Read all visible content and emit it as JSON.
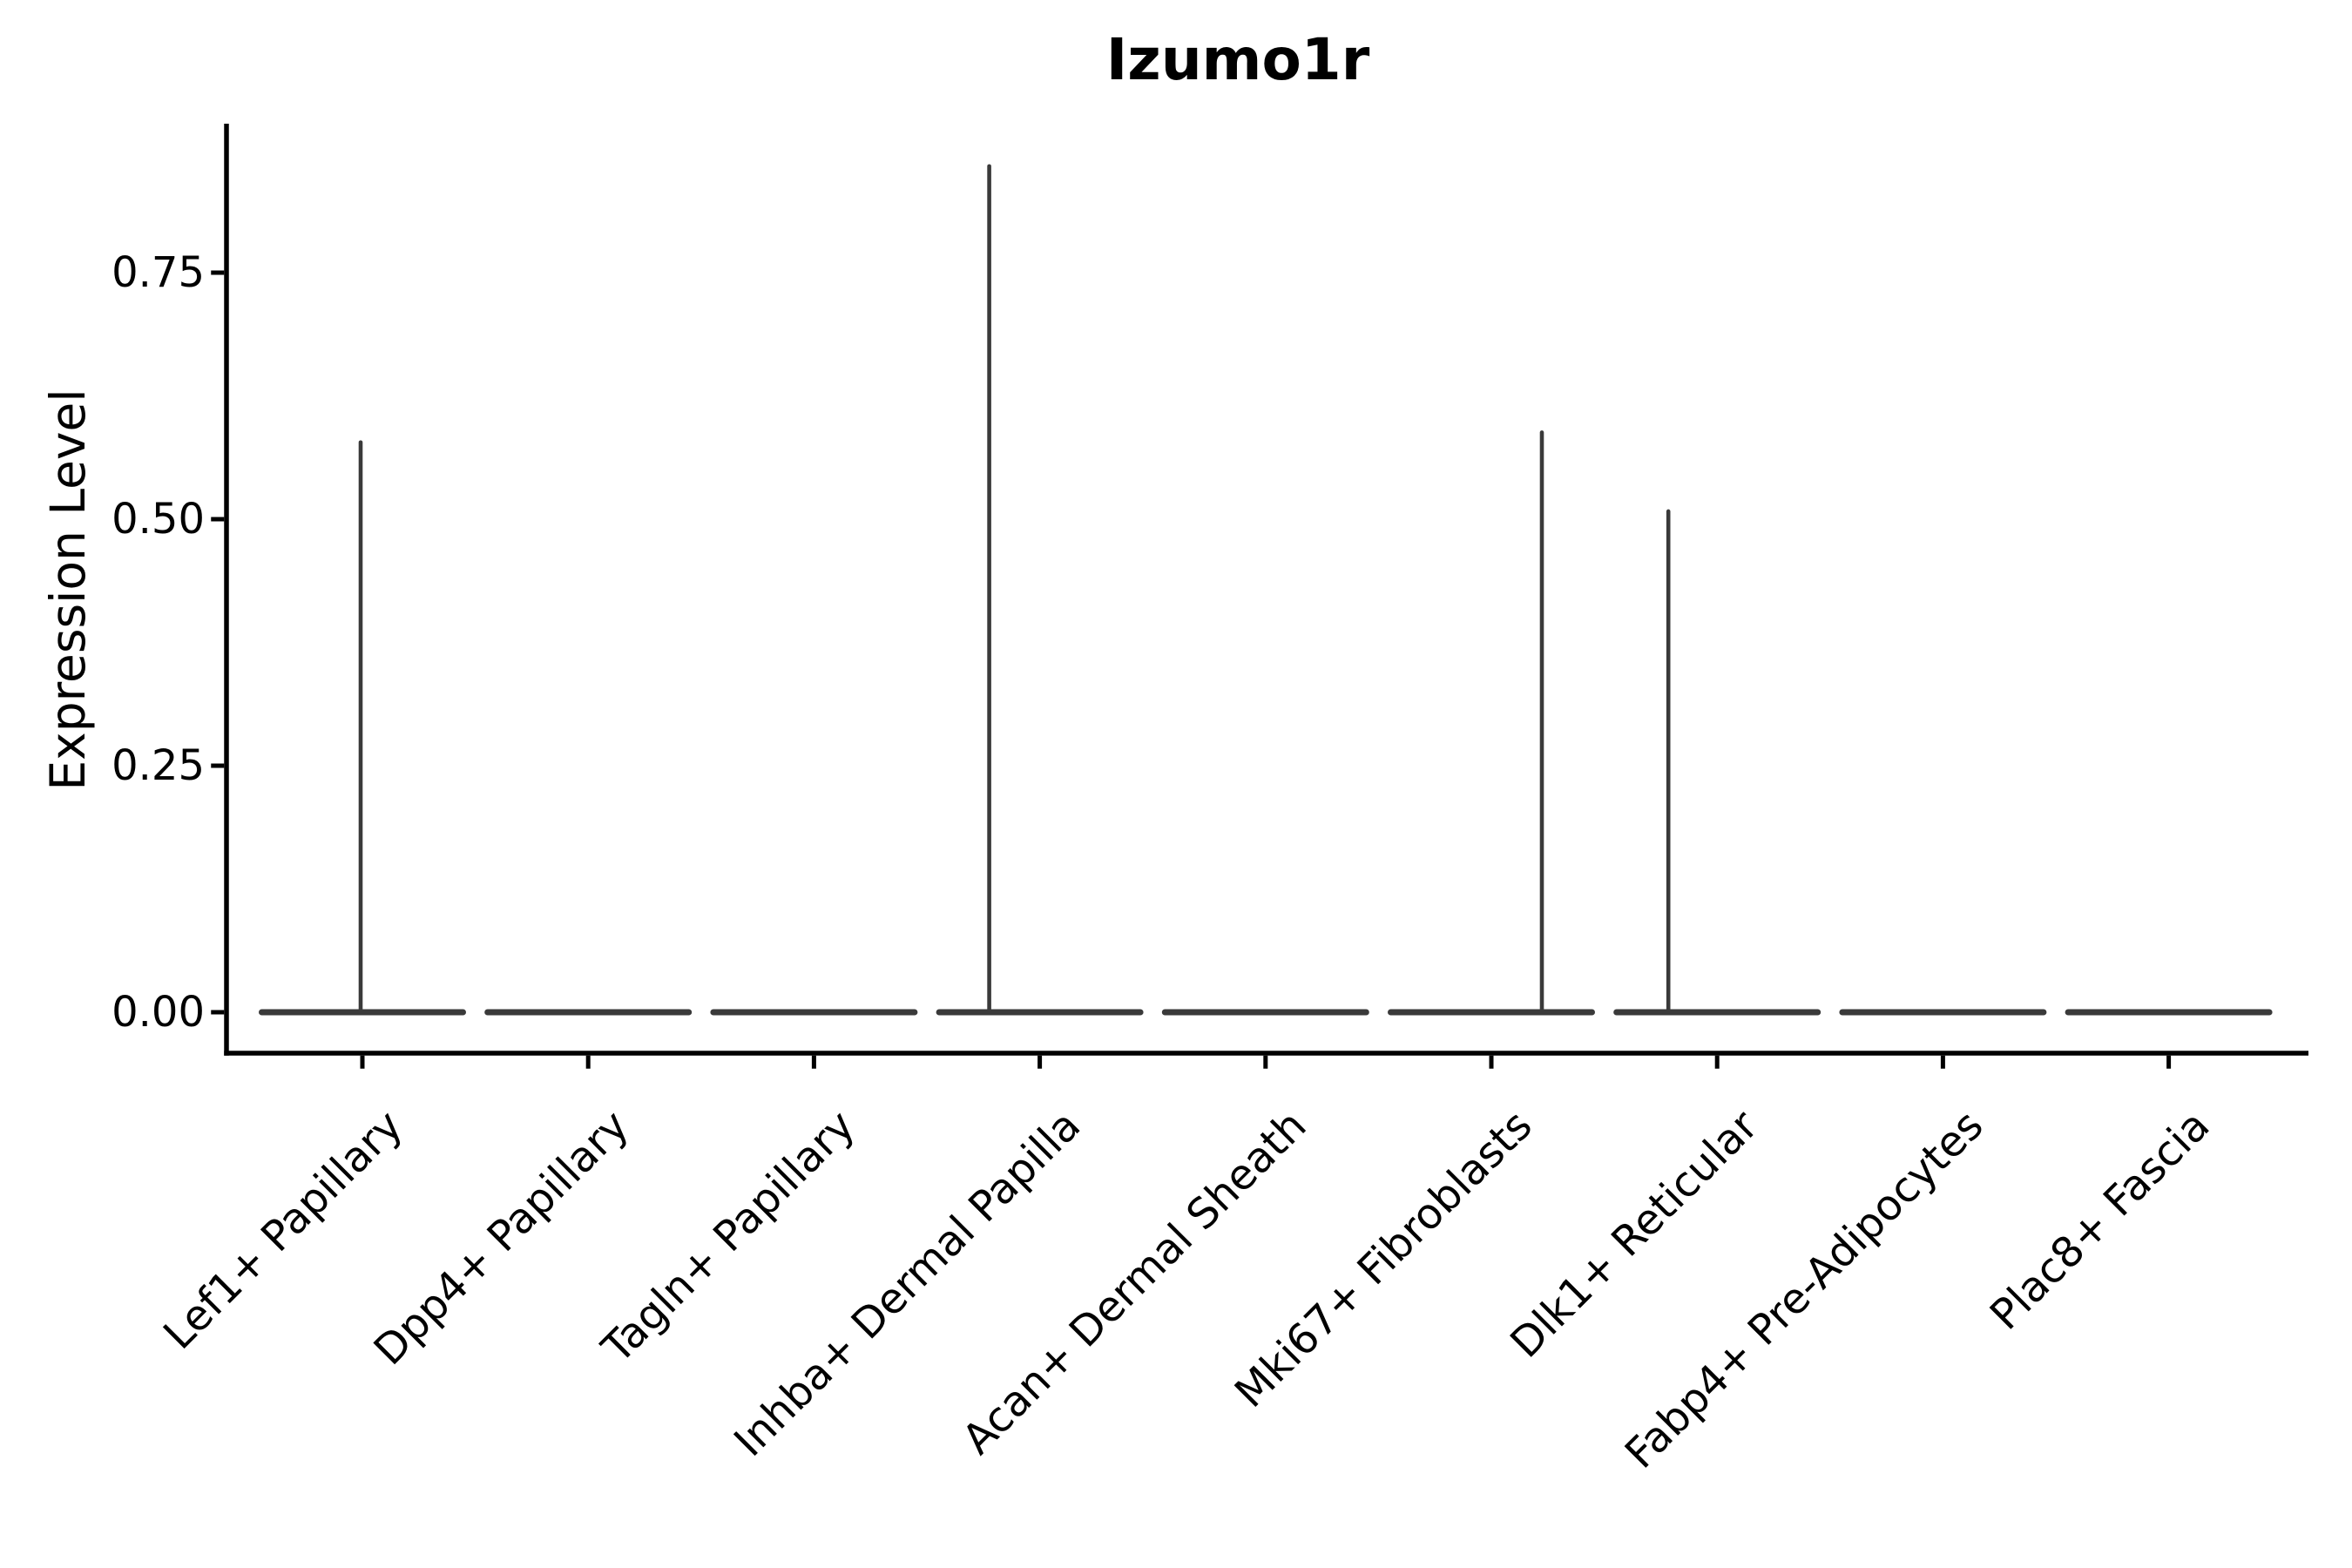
{
  "chart_data": {
    "type": "violin",
    "title": "Izumo1r",
    "ylabel": "Expression Level",
    "xlabel": "",
    "ylim": [
      0,
      0.9
    ],
    "grid": false,
    "legend": "none",
    "ytick_labels": [
      "0.00",
      "0.25",
      "0.50",
      "0.75"
    ],
    "ytick_values": [
      0.0,
      0.25,
      0.5,
      0.75
    ],
    "categories": [
      "Lef1+ Papillary",
      "Dpp4+ Papillary",
      "Tagln+ Papillary",
      "Inhba+ Dermal Papilla",
      "Acan+ Dermal Sheath",
      "Mki67+ Fibroblasts",
      "Dlk1+ Reticular",
      "Fabp4+ Pre-Adipocytes",
      "Plac8+ Fascia"
    ],
    "violins": [
      {
        "category": "Lef1+ Papillary",
        "baseline_value": 0.0,
        "max_value": 0.58,
        "has_spike": true,
        "spike_x_offset": -2
      },
      {
        "category": "Dpp4+ Papillary",
        "baseline_value": 0.0,
        "max_value": 0.0,
        "has_spike": false,
        "spike_x_offset": 0
      },
      {
        "category": "Tagln+ Papillary",
        "baseline_value": 0.0,
        "max_value": 0.0,
        "has_spike": false,
        "spike_x_offset": 0
      },
      {
        "category": "Inhba+ Dermal Papilla",
        "baseline_value": 0.0,
        "max_value": 0.86,
        "has_spike": true,
        "spike_x_offset": -58
      },
      {
        "category": "Acan+ Dermal Sheath",
        "baseline_value": 0.0,
        "max_value": 0.0,
        "has_spike": false,
        "spike_x_offset": 0
      },
      {
        "category": "Mki67+ Fibroblasts",
        "baseline_value": 0.0,
        "max_value": 0.59,
        "has_spike": true,
        "spike_x_offset": 58
      },
      {
        "category": "Dlk1+ Reticular",
        "baseline_value": 0.0,
        "max_value": 0.51,
        "has_spike": true,
        "spike_x_offset": -56
      },
      {
        "category": "Fabp4+ Pre-Adipocytes",
        "baseline_value": 0.0,
        "max_value": 0.0,
        "has_spike": false,
        "spike_x_offset": 0
      },
      {
        "category": "Plac8+ Fascia",
        "baseline_value": 0.0,
        "max_value": 0.0,
        "has_spike": false,
        "spike_x_offset": 0
      }
    ],
    "colors": {
      "violin": "#3a3a3a",
      "axis": "#000000",
      "text": "#000000",
      "background": "#ffffff"
    }
  }
}
